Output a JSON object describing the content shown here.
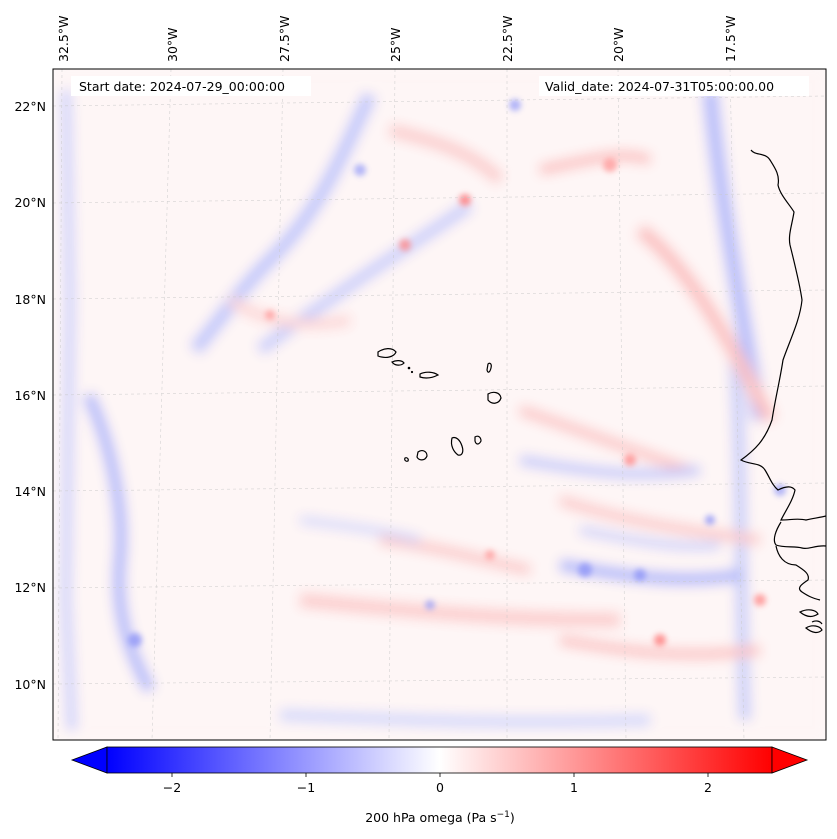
{
  "map": {
    "start_label": "Start date: 2024-07-29_00:00:00",
    "valid_label": "Valid_date: 2024-07-31T05:00:00.00",
    "lon_labels": [
      "32.5°W",
      "30°W",
      "27.5°W",
      "25°W",
      "22.5°W",
      "20°W",
      "17.5°W"
    ],
    "lat_labels": [
      "22°N",
      "20°N",
      "18°N",
      "16°N",
      "14°N",
      "12°N",
      "10°N"
    ],
    "gridlines": true
  },
  "colorbar": {
    "ticks": [
      "−2",
      "−1",
      "0",
      "1",
      "2"
    ],
    "label": "200 hPa omega (Pa s",
    "label_sup": "−1",
    "label_close": ")",
    "colors": {
      "negative": "#0000ff",
      "zero": "#ffffff",
      "positive": "#ff0000"
    }
  }
}
